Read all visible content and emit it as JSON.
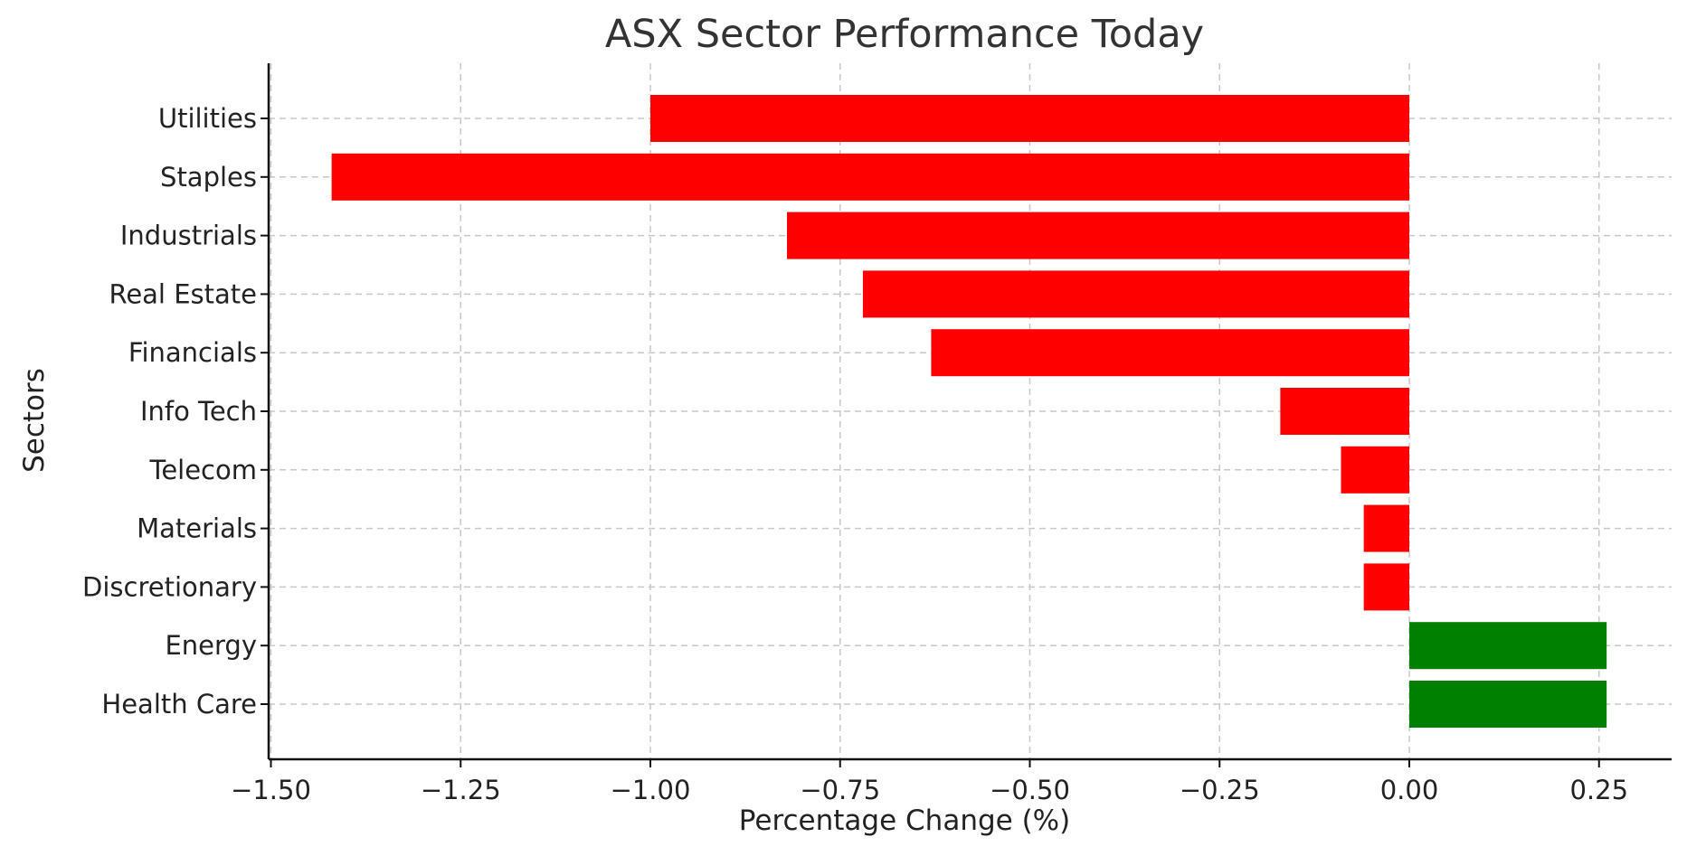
{
  "chart_data": {
    "type": "bar",
    "orientation": "horizontal",
    "title": "ASX Sector Performance Today",
    "xlabel": "Percentage Change (%)",
    "ylabel": "Sectors",
    "xlim": [
      -1.5,
      0.3
    ],
    "xticks": [
      -1.5,
      -1.25,
      -1.0,
      -0.75,
      -0.5,
      -0.25,
      0.0,
      0.25
    ],
    "xtick_labels": [
      "−1.50",
      "−1.25",
      "−1.00",
      "−0.75",
      "−0.50",
      "−0.25",
      "0.00",
      "0.25"
    ],
    "categories": [
      "Utilities",
      "Staples",
      "Industrials",
      "Real Estate",
      "Financials",
      "Info Tech",
      "Telecom",
      "Materials",
      "Discretionary",
      "Energy",
      "Health Care"
    ],
    "values": [
      -1.0,
      -1.42,
      -0.82,
      -0.72,
      -0.63,
      -0.17,
      -0.09,
      -0.06,
      -0.06,
      0.26,
      0.26
    ],
    "colors": {
      "negative": "#ff0000",
      "positive": "#008000"
    },
    "grid": true
  }
}
